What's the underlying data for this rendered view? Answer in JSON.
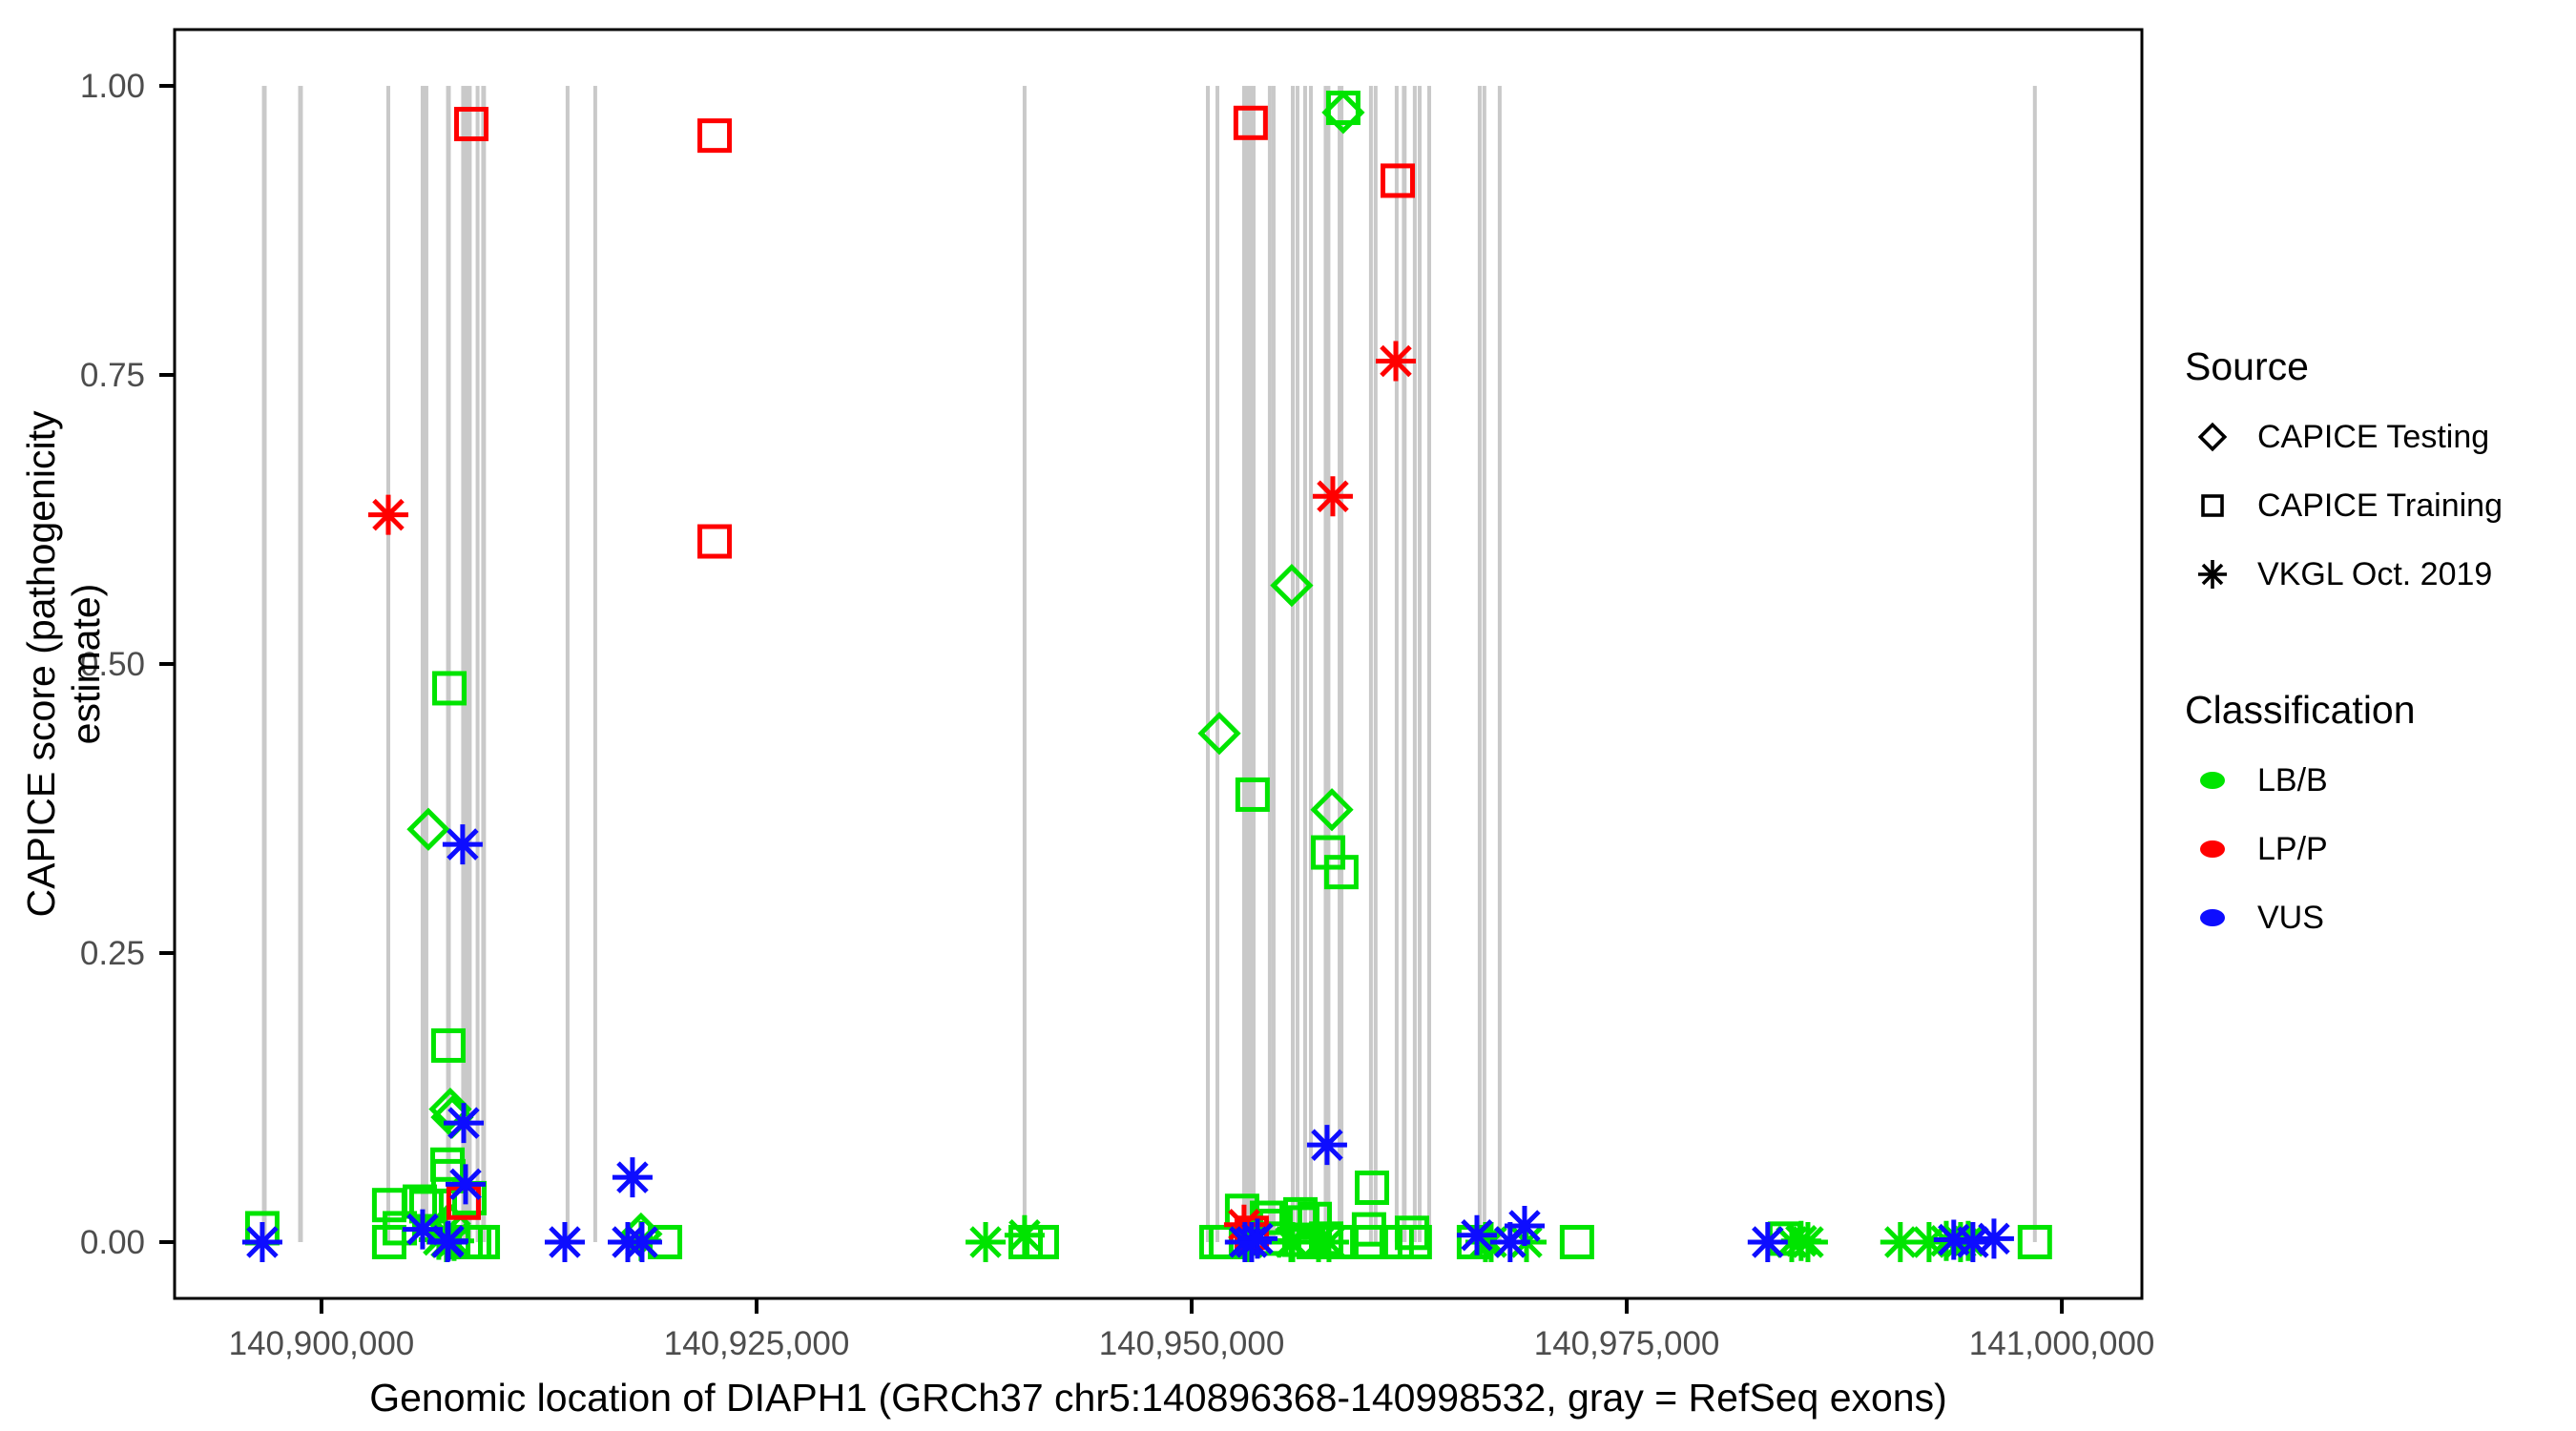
{
  "chart_data": {
    "type": "scatter",
    "title": "",
    "xlabel": "Genomic location of DIAPH1 (GRCh37 chr5:140896368-140998532, gray = RefSeq exons)",
    "ylabel": "CAPICE score (pathogenicity estimate)",
    "xlim": [
      140891560,
      141004600
    ],
    "ylim": [
      -0.0487,
      1.0487
    ],
    "grid": "off",
    "x_ticks": [
      {
        "pos": 140900000,
        "label": "140,900,000"
      },
      {
        "pos": 140925000,
        "label": "140,925,000"
      },
      {
        "pos": 140950000,
        "label": "140,950,000"
      },
      {
        "pos": 140975000,
        "label": "140,975,000"
      },
      {
        "pos": 141000000,
        "label": "141,000,000"
      }
    ],
    "y_ticks": [
      {
        "val": 0.0,
        "label": "0.00"
      },
      {
        "val": 0.25,
        "label": "0.25"
      },
      {
        "val": 0.5,
        "label": "0.50"
      },
      {
        "val": 0.75,
        "label": "0.75"
      },
      {
        "val": 1.0,
        "label": "1.00"
      }
    ],
    "colors": {
      "LB/B": "#00e400",
      "LP/P": "#ff0000",
      "VUS": "#0d0dff",
      "exon": "#c9c9c9",
      "axis_text": "#4d4d4d",
      "border": "#000000"
    },
    "shape_legend": {
      "d": "CAPICE Testing",
      "s": "CAPICE Training",
      "a": "VKGL Oct. 2019"
    },
    "exons": [
      [
        140896580,
        140896850
      ],
      [
        140898660,
        140898930
      ],
      [
        140903730,
        140903950
      ],
      [
        140905700,
        140906140
      ],
      [
        140907160,
        140907430
      ],
      [
        140908030,
        140908630
      ],
      [
        140908860,
        140909020
      ],
      [
        140909180,
        140909450
      ],
      [
        140914030,
        140914250
      ],
      [
        140915620,
        140915840
      ],
      [
        140940290,
        140940510
      ],
      [
        140950820,
        140951040
      ],
      [
        140951370,
        140951590
      ],
      [
        140952900,
        140953670
      ],
      [
        140954380,
        140954600
      ],
      [
        140954600,
        140954820
      ],
      [
        140955700,
        140955920
      ],
      [
        140955970,
        140956190
      ],
      [
        140956410,
        140956630
      ],
      [
        140956740,
        140956960
      ],
      [
        140957590,
        140957970
      ],
      [
        140958390,
        140958720
      ],
      [
        140960190,
        140960410
      ],
      [
        140960460,
        140960680
      ],
      [
        140961670,
        140961890
      ],
      [
        140962080,
        140962350
      ],
      [
        140962710,
        140962930
      ],
      [
        140962990,
        140963210
      ],
      [
        140963540,
        140963760
      ],
      [
        140966440,
        140966660
      ],
      [
        140966710,
        140966930
      ],
      [
        140967590,
        140967810
      ],
      [
        140998340,
        140998560
      ]
    ],
    "points": [
      [
        140896600,
        0.012,
        "s",
        "LB/B"
      ],
      [
        140896600,
        0.0,
        "a",
        "VUS"
      ],
      [
        140903840,
        0.629,
        "a",
        "LP/P"
      ],
      [
        140903890,
        0.032,
        "s",
        "LB/B"
      ],
      [
        140903890,
        0.0,
        "s",
        "LB/B"
      ],
      [
        140904500,
        0.012,
        "s",
        "LB/B"
      ],
      [
        140905650,
        0.035,
        "s",
        "LB/B"
      ],
      [
        140905810,
        0.011,
        "a",
        "VUS"
      ],
      [
        140906030,
        0.031,
        "s",
        "LB/B"
      ],
      [
        140906140,
        0.357,
        "d",
        "LB/B"
      ],
      [
        140906740,
        0.002,
        "a",
        "LB/B"
      ],
      [
        140907130,
        0.009,
        "a",
        "LB/B"
      ],
      [
        140907180,
        0.0,
        "a",
        "LB/B"
      ],
      [
        140907240,
        0.067,
        "s",
        "LB/B"
      ],
      [
        140907290,
        0.057,
        "s",
        "LB/B"
      ],
      [
        140907290,
        0.17,
        "s",
        "LB/B"
      ],
      [
        140907350,
        0.479,
        "s",
        "LB/B"
      ],
      [
        140907400,
        0.115,
        "d",
        "LB/B"
      ],
      [
        140907510,
        0.108,
        "d",
        "LB/B"
      ],
      [
        140907350,
        0.016,
        "d",
        "LB/B"
      ],
      [
        140907620,
        0.001,
        "a",
        "LB/B"
      ],
      [
        140907290,
        0.001,
        "a",
        "VUS"
      ],
      [
        140907240,
        0.0,
        "a",
        "VUS"
      ],
      [
        140908110,
        0.344,
        "a",
        "VUS"
      ],
      [
        140908170,
        0.103,
        "a",
        "VUS"
      ],
      [
        140908280,
        0.05,
        "a",
        "VUS"
      ],
      [
        140908170,
        0.034,
        "s",
        "LP/P"
      ],
      [
        140908500,
        0.038,
        "s",
        "LB/B"
      ],
      [
        140908610,
        0.967,
        "s",
        "LP/P"
      ],
      [
        140908280,
        0.0,
        "s",
        "LB/B"
      ],
      [
        140908770,
        0.0,
        "s",
        "LB/B"
      ],
      [
        140909270,
        0.0,
        "s",
        "LB/B"
      ],
      [
        140913980,
        0.0,
        "a",
        "VUS"
      ],
      [
        140917870,
        0.056,
        "a",
        "VUS"
      ],
      [
        140917600,
        0.0,
        "a",
        "VUS"
      ],
      [
        140918360,
        0.007,
        "d",
        "LB/B"
      ],
      [
        140918360,
        0.001,
        "a",
        "LB/B"
      ],
      [
        140918420,
        0.0,
        "a",
        "VUS"
      ],
      [
        140919740,
        0.0,
        "s",
        "LB/B"
      ],
      [
        140922590,
        0.957,
        "s",
        "LP/P"
      ],
      [
        140922590,
        0.606,
        "s",
        "LP/P"
      ],
      [
        140938160,
        0.0,
        "a",
        "LB/B"
      ],
      [
        140940400,
        0.006,
        "a",
        "LB/B"
      ],
      [
        140940460,
        0.0,
        "s",
        "LB/B"
      ],
      [
        140941390,
        0.0,
        "s",
        "LB/B"
      ],
      [
        140951420,
        0.0,
        "s",
        "LB/B"
      ],
      [
        140951590,
        0.44,
        "d",
        "LB/B"
      ],
      [
        140951970,
        0.0,
        "s",
        "LB/B"
      ],
      [
        140952900,
        0.027,
        "s",
        "LB/B"
      ],
      [
        140953010,
        0.015,
        "a",
        "LP/P"
      ],
      [
        140953060,
        0.0,
        "a",
        "VUS"
      ],
      [
        140953230,
        0.0,
        "a",
        "LB/B"
      ],
      [
        140953390,
        0.968,
        "s",
        "LP/P"
      ],
      [
        140953450,
        0.008,
        "s",
        "LP/P"
      ],
      [
        140953450,
        0.0,
        "a",
        "VUS"
      ],
      [
        140953500,
        0.387,
        "s",
        "LB/B"
      ],
      [
        140953780,
        0.003,
        "a",
        "VUS"
      ],
      [
        140954330,
        0.021,
        "s",
        "LB/B"
      ],
      [
        140954550,
        0.003,
        "s",
        "LB/B"
      ],
      [
        140954820,
        0.014,
        "s",
        "LB/B"
      ],
      [
        140955700,
        0.0,
        "a",
        "LB/B"
      ],
      [
        140955750,
        0.568,
        "d",
        "LB/B"
      ],
      [
        140955810,
        0.0,
        "a",
        "LB/B"
      ],
      [
        140956190,
        0.002,
        "s",
        "LB/B"
      ],
      [
        140956250,
        0.024,
        "s",
        "LB/B"
      ],
      [
        140956360,
        0.017,
        "s",
        "LB/B"
      ],
      [
        140957010,
        0.0,
        "s",
        "LB/B"
      ],
      [
        140957070,
        0.02,
        "s",
        "LB/B"
      ],
      [
        140957290,
        0.0,
        "a",
        "LB/B"
      ],
      [
        140957730,
        0.003,
        "s",
        "LB/B"
      ],
      [
        140957780,
        0.084,
        "a",
        "VUS"
      ],
      [
        140957840,
        0.337,
        "s",
        "LB/B"
      ],
      [
        140957890,
        0.0,
        "a",
        "LB/B"
      ],
      [
        140958060,
        0.374,
        "d",
        "LB/B"
      ],
      [
        140958110,
        0.645,
        "a",
        "LP/P"
      ],
      [
        140958390,
        0.0,
        "s",
        "LB/B"
      ],
      [
        140958600,
        0.32,
        "s",
        "LB/B"
      ],
      [
        140958710,
        0.981,
        "s",
        "LB/B"
      ],
      [
        140958710,
        0.977,
        "d",
        "LB/B"
      ],
      [
        140960190,
        0.011,
        "s",
        "LB/B"
      ],
      [
        140960300,
        0.0,
        "s",
        "LB/B"
      ],
      [
        140960360,
        0.047,
        "s",
        "LB/B"
      ],
      [
        140961730,
        0.762,
        "a",
        "LP/P"
      ],
      [
        140961780,
        0.0,
        "s",
        "LB/B"
      ],
      [
        140961840,
        0.918,
        "s",
        "LP/P"
      ],
      [
        140962660,
        0.008,
        "s",
        "LB/B"
      ],
      [
        140962820,
        0.0,
        "s",
        "LB/B"
      ],
      [
        140966220,
        0.0,
        "s",
        "LB/B"
      ],
      [
        140966390,
        0.006,
        "a",
        "VUS"
      ],
      [
        140966880,
        0.0,
        "a",
        "LB/B"
      ],
      [
        140967210,
        0.0,
        "a",
        "LB/B"
      ],
      [
        140968300,
        0.0,
        "a",
        "VUS"
      ],
      [
        140969130,
        0.014,
        "a",
        "VUS"
      ],
      [
        140969240,
        0.0,
        "a",
        "LB/B"
      ],
      [
        140972140,
        0.0,
        "s",
        "LB/B"
      ],
      [
        140983100,
        0.0,
        "a",
        "VUS"
      ],
      [
        140984090,
        0.003,
        "s",
        "LB/B"
      ],
      [
        140984480,
        0.0,
        "a",
        "LB/B"
      ],
      [
        140985020,
        0.001,
        "a",
        "LB/B"
      ],
      [
        140985410,
        0.0,
        "a",
        "LB/B"
      ],
      [
        140990720,
        0.0,
        "a",
        "LB/B"
      ],
      [
        140992370,
        0.0,
        "a",
        "LB/B"
      ],
      [
        140993360,
        0.001,
        "a",
        "LB/B"
      ],
      [
        140993790,
        0.002,
        "a",
        "VUS"
      ],
      [
        140994180,
        0.0,
        "a",
        "LB/B"
      ],
      [
        140994620,
        0.001,
        "a",
        "LB/B"
      ],
      [
        140994890,
        0.0,
        "a",
        "VUS"
      ],
      [
        140996100,
        0.003,
        "a",
        "VUS"
      ],
      [
        140998450,
        0.0,
        "s",
        "LB/B"
      ]
    ]
  },
  "legend": {
    "source": {
      "title": "Source",
      "items": [
        {
          "symbol": "diamond",
          "label": "CAPICE Testing"
        },
        {
          "symbol": "square",
          "label": "CAPICE Training"
        },
        {
          "symbol": "asterisk",
          "label": "VKGL Oct. 2019"
        }
      ]
    },
    "classification": {
      "title": "Classification",
      "items": [
        {
          "color": "#00e400",
          "label": "LB/B"
        },
        {
          "color": "#ff0000",
          "label": "LP/P"
        },
        {
          "color": "#0d0dff",
          "label": "VUS"
        }
      ]
    }
  }
}
